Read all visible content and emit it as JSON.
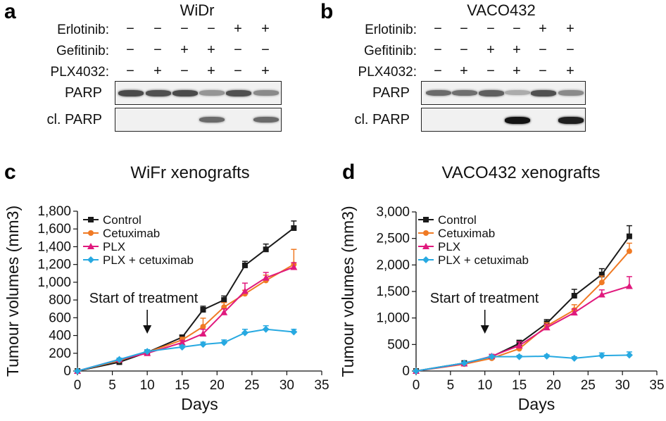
{
  "panels": {
    "a": {
      "letter": "a",
      "title": "WiDr"
    },
    "b": {
      "letter": "b",
      "title": "VACO432"
    },
    "c": {
      "letter": "c"
    },
    "d": {
      "letter": "d"
    }
  },
  "blot": {
    "conditions": [
      {
        "label": "Erlotinib:",
        "signs": [
          "−",
          "−",
          "−",
          "−",
          "+",
          "+"
        ]
      },
      {
        "label": "Gefitinib:",
        "signs": [
          "−",
          "−",
          "+",
          "+",
          "−",
          "−"
        ]
      },
      {
        "label": "PLX4032:",
        "signs": [
          "−",
          "+",
          "−",
          "+",
          "−",
          "+"
        ]
      }
    ],
    "band_labels": [
      "PARP",
      "cl. PARP"
    ],
    "widr": {
      "parp_intensity": [
        0.75,
        0.72,
        0.75,
        0.4,
        0.72,
        0.45
      ],
      "cl_parp_intensity": [
        0.0,
        0.0,
        0.0,
        0.6,
        0.0,
        0.6
      ]
    },
    "vaco": {
      "parp_intensity": [
        0.6,
        0.58,
        0.65,
        0.3,
        0.72,
        0.45
      ],
      "cl_parp_intensity": [
        0.0,
        0.0,
        0.0,
        1.0,
        0.0,
        0.95
      ]
    }
  },
  "chart_data": [
    {
      "type": "line",
      "title": "WiFr xenografts",
      "xlabel": "Days",
      "ylabel": "Tumour volumes (mm3)",
      "xlim": [
        0,
        35
      ],
      "ylim": [
        0,
        1800
      ],
      "xticks": [
        "0",
        "5",
        "10",
        "15",
        "20",
        "25",
        "30",
        "35"
      ],
      "yticks": [
        "0",
        "200",
        "400",
        "600",
        "800",
        "1,000",
        "1,200",
        "1,400",
        "1,600",
        "1,800"
      ],
      "legend_position": "top-left",
      "annotation": "Start of treatment",
      "annotation_x": 10,
      "x": [
        0,
        6,
        10,
        15,
        18,
        21,
        24,
        27,
        31
      ],
      "series": [
        {
          "name": "Control",
          "color": "#1a1a1a",
          "marker": "square",
          "values": [
            0,
            100,
            210,
            380,
            690,
            800,
            1190,
            1370,
            1610
          ],
          "errors": [
            0,
            20,
            25,
            25,
            40,
            45,
            45,
            60,
            80
          ]
        },
        {
          "name": "Cetuximab",
          "color": "#f07a24",
          "marker": "circle",
          "values": [
            0,
            120,
            210,
            350,
            500,
            720,
            870,
            1020,
            1200
          ],
          "errors": [
            0,
            15,
            20,
            30,
            95,
            50,
            40,
            60,
            170
          ]
        },
        {
          "name": "PLX",
          "color": "#e0197d",
          "marker": "triangle",
          "values": [
            0,
            130,
            200,
            320,
            420,
            660,
            900,
            1050,
            1170
          ],
          "errors": [
            0,
            15,
            20,
            25,
            50,
            40,
            90,
            60,
            50
          ]
        },
        {
          "name": "PLX + cetuximab",
          "color": "#27a9e1",
          "marker": "diamond",
          "values": [
            0,
            130,
            220,
            270,
            300,
            320,
            430,
            470,
            440
          ],
          "errors": [
            0,
            15,
            20,
            20,
            25,
            30,
            40,
            40,
            30
          ]
        }
      ]
    },
    {
      "type": "line",
      "title": "VACO432 xenografts",
      "xlabel": "Days",
      "ylabel": "Tumour volumes (mm3)",
      "xlim": [
        0,
        35
      ],
      "ylim": [
        0,
        3000
      ],
      "xticks": [
        "0",
        "5",
        "10",
        "15",
        "20",
        "25",
        "30",
        "35"
      ],
      "yticks": [
        "0",
        "500",
        "1,000",
        "1,500",
        "2,000",
        "2,500",
        "3,000"
      ],
      "legend_position": "top-left",
      "annotation": "Start of treatment",
      "annotation_x": 10,
      "x": [
        0,
        7,
        11,
        15,
        19,
        23,
        27,
        31
      ],
      "series": [
        {
          "name": "Control",
          "color": "#1a1a1a",
          "marker": "square",
          "values": [
            0,
            150,
            270,
            520,
            900,
            1420,
            1820,
            2540
          ],
          "errors": [
            0,
            30,
            40,
            60,
            70,
            120,
            110,
            200
          ]
        },
        {
          "name": "Cetuximab",
          "color": "#f07a24",
          "marker": "circle",
          "values": [
            0,
            130,
            240,
            420,
            850,
            1150,
            1670,
            2260
          ],
          "errors": [
            0,
            20,
            30,
            50,
            60,
            100,
            120,
            150
          ]
        },
        {
          "name": "PLX",
          "color": "#e0197d",
          "marker": "triangle",
          "values": [
            0,
            140,
            280,
            480,
            820,
            1100,
            1440,
            1600
          ],
          "errors": [
            0,
            25,
            35,
            70,
            60,
            70,
            90,
            180
          ]
        },
        {
          "name": "PLX + cetuximab",
          "color": "#27a9e1",
          "marker": "diamond",
          "values": [
            0,
            150,
            270,
            270,
            280,
            240,
            290,
            300
          ],
          "errors": [
            0,
            20,
            25,
            25,
            25,
            30,
            50,
            60
          ]
        }
      ]
    }
  ]
}
